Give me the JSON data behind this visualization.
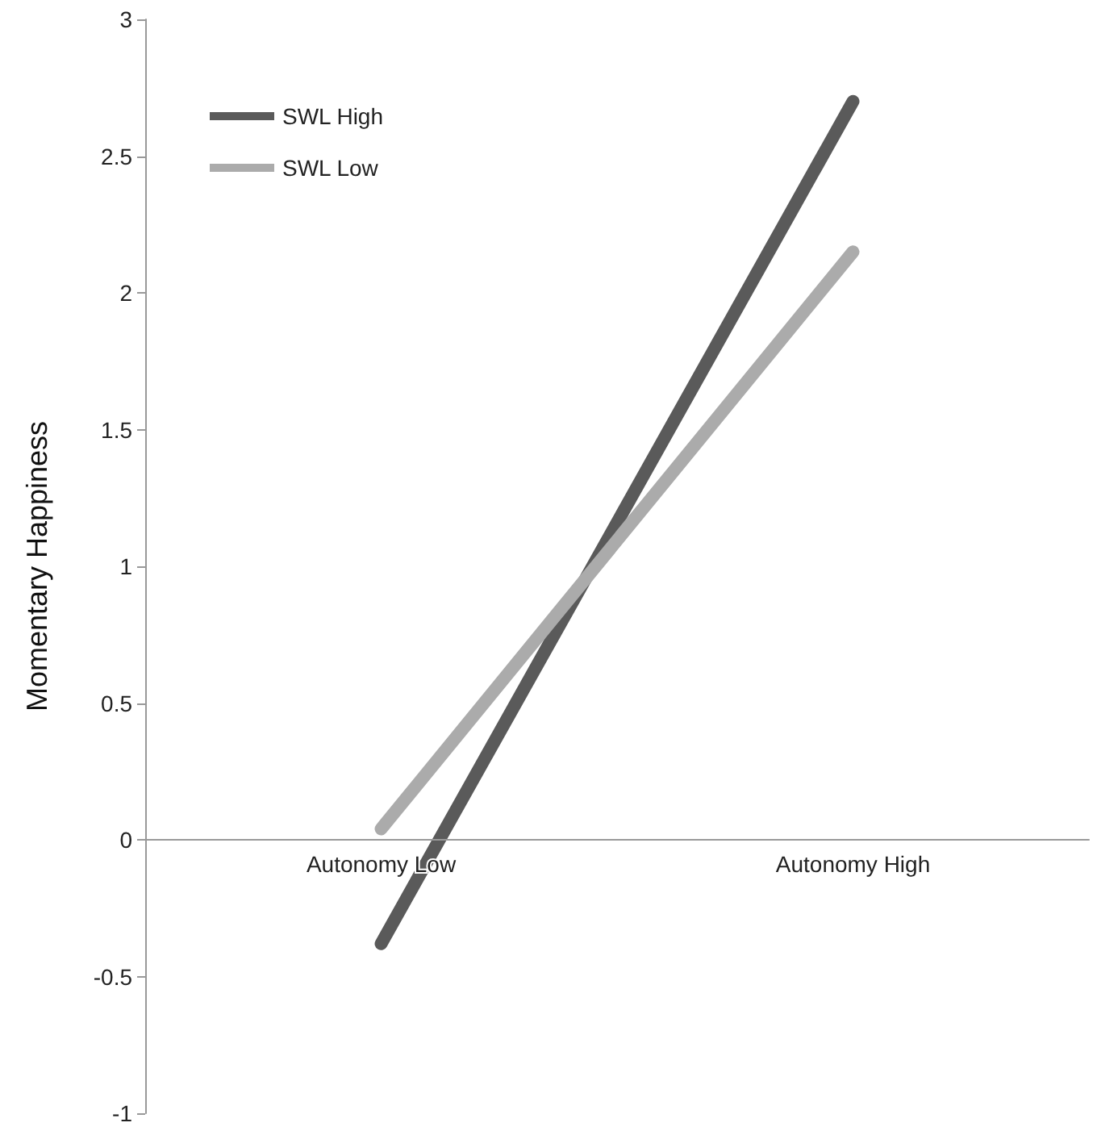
{
  "chart_data": {
    "type": "line",
    "ylabel": "Momentary Happiness",
    "categories": [
      "Autonomy Low",
      "Autonomy High"
    ],
    "series": [
      {
        "name": "SWL High",
        "color": "#5a5a5a",
        "values": [
          -0.38,
          2.7
        ]
      },
      {
        "name": "SWL Low",
        "color": "#ababab",
        "values": [
          0.04,
          2.15
        ]
      }
    ],
    "ylim": [
      -1,
      3
    ],
    "yticks": [
      -1,
      -0.5,
      0,
      0.5,
      1,
      1.5,
      2,
      2.5,
      3
    ],
    "grid": false,
    "legend": "top left",
    "marker": "none",
    "line_style": "solid"
  }
}
